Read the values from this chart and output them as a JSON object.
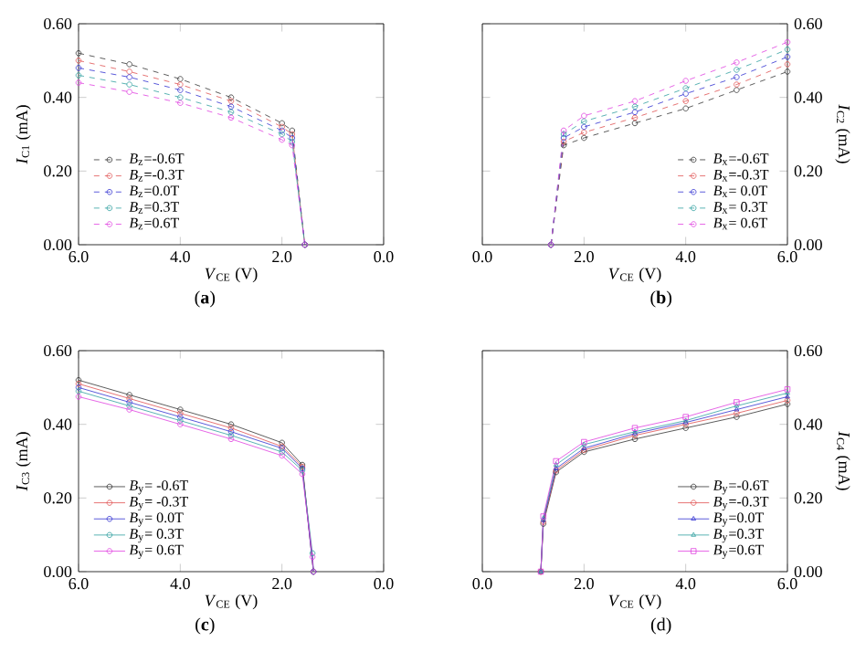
{
  "chart_data": [
    {
      "type": "line",
      "xlabel": "*V*$_{CE}$ (V)",
      "ylabel": "*I*$_{C1}$ (mA)",
      "annotations": [
        "(**a**)"
      ],
      "xlim": [
        6,
        0
      ],
      "xticks": [
        {
          "value": 6,
          "label": "6.0"
        },
        {
          "value": 4,
          "label": "4.0"
        },
        {
          "value": 2,
          "label": "2.0"
        },
        {
          "value": 0,
          "label": "0.0"
        }
      ],
      "ylim": [
        0,
        0.6
      ],
      "yticks": [
        {
          "value": 0,
          "label": "0.00"
        },
        {
          "value": 0.2,
          "label": "0.20"
        },
        {
          "value": 0.4,
          "label": "0.40"
        },
        {
          "value": 0.6,
          "label": "0.60"
        }
      ],
      "legend": "bottom left",
      "marker": "circle",
      "line_style": "dashed",
      "x": [
        6,
        5,
        4,
        3,
        2,
        1.8,
        1.55
      ],
      "series": [
        {
          "name": "*B*$_{z}$=-0.6T",
          "color": "#333333",
          "values": [
            0.52,
            0.49,
            0.45,
            0.4,
            0.33,
            0.31,
            0
          ]
        },
        {
          "name": "*B*$_{z}$=-0.3T",
          "color": "#e05050",
          "values": [
            0.5,
            0.47,
            0.435,
            0.39,
            0.32,
            0.3,
            0
          ]
        },
        {
          "name": "*B*$_{z}$=0.0T",
          "color": "#3030d0",
          "values": [
            0.48,
            0.455,
            0.42,
            0.375,
            0.31,
            0.29,
            0
          ]
        },
        {
          "name": "*B*$_{z}$=0.3T",
          "color": "#30a0a0",
          "values": [
            0.46,
            0.435,
            0.4,
            0.36,
            0.3,
            0.28,
            0
          ]
        },
        {
          "name": "*B*$_{z}$=0.6T",
          "color": "#e040e0",
          "values": [
            0.44,
            0.415,
            0.385,
            0.345,
            0.285,
            0.27,
            0
          ]
        }
      ]
    },
    {
      "type": "line",
      "xlabel": "*V*$_{CE}$ (V)",
      "y2label": "*I*$_{C2}$ (mA)",
      "annotations": [
        "(**b**)"
      ],
      "xlim": [
        0,
        6
      ],
      "xticks": [
        {
          "value": 0,
          "label": "0.0"
        },
        {
          "value": 2,
          "label": "2.0"
        },
        {
          "value": 4,
          "label": "4.0"
        },
        {
          "value": 6,
          "label": "6.0"
        }
      ],
      "y2lim": [
        0,
        0.6
      ],
      "y2ticks": [
        {
          "value": 0,
          "label": "0.00"
        },
        {
          "value": 0.2,
          "label": "0.20"
        },
        {
          "value": 0.4,
          "label": "0.40"
        },
        {
          "value": 0.6,
          "label": "0.60"
        }
      ],
      "legend": "bottom right",
      "marker": "circle",
      "line_style": "dashed",
      "x": [
        1.35,
        1.6,
        2,
        3,
        4,
        5,
        6
      ],
      "series": [
        {
          "name": "*B*$_{x}$=-0.6T",
          "color": "#333333",
          "axis": "y2",
          "values": [
            0,
            0.27,
            0.29,
            0.33,
            0.37,
            0.42,
            0.47
          ]
        },
        {
          "name": "*B*$_{x}$=-0.3T",
          "color": "#e05050",
          "axis": "y2",
          "values": [
            0,
            0.28,
            0.305,
            0.345,
            0.39,
            0.435,
            0.49
          ]
        },
        {
          "name": "*B*$_{x}$= 0.0T",
          "color": "#3030d0",
          "axis": "y2",
          "values": [
            0,
            0.29,
            0.32,
            0.36,
            0.41,
            0.455,
            0.51
          ]
        },
        {
          "name": "*B*$_{x}$= 0.3T",
          "color": "#30a0a0",
          "axis": "y2",
          "values": [
            0,
            0.3,
            0.335,
            0.375,
            0.425,
            0.475,
            0.53
          ]
        },
        {
          "name": "*B*$_{x}$= 0.6T",
          "color": "#e040e0",
          "axis": "y2",
          "values": [
            0,
            0.31,
            0.35,
            0.39,
            0.445,
            0.495,
            0.55
          ]
        }
      ]
    },
    {
      "type": "line",
      "xlabel": "*V*$_{CE}$ (V)",
      "ylabel": "*I*$_{C3}$ (mA)",
      "annotations": [
        "(**c**)"
      ],
      "xlim": [
        6,
        0
      ],
      "xticks": [
        {
          "value": 6,
          "label": "6.0"
        },
        {
          "value": 4,
          "label": "4.0"
        },
        {
          "value": 2,
          "label": "2.0"
        },
        {
          "value": 0,
          "label": "0.0"
        }
      ],
      "ylim": [
        0,
        0.6
      ],
      "yticks": [
        {
          "value": 0,
          "label": "0.00"
        },
        {
          "value": 0.2,
          "label": "0.20"
        },
        {
          "value": 0.4,
          "label": "0.40"
        },
        {
          "value": 0.6,
          "label": "0.60"
        }
      ],
      "legend": "bottom left",
      "marker": "circle",
      "line_style": "solid",
      "x": [
        6,
        5,
        4,
        3,
        2,
        1.6,
        1.4,
        1.38
      ],
      "series": [
        {
          "name": "*B*$_{y}$= -0.6T",
          "color": "#333333",
          "values": [
            0.52,
            0.48,
            0.44,
            0.4,
            0.35,
            0.29,
            null,
            0
          ]
        },
        {
          "name": "*B*$_{y}$= -0.3T",
          "color": "#e05050",
          "values": [
            0.51,
            0.47,
            0.43,
            0.39,
            0.34,
            0.285,
            null,
            0
          ]
        },
        {
          "name": "*B*$_{y}$= 0.0T",
          "color": "#3030d0",
          "values": [
            0.5,
            0.46,
            0.42,
            0.38,
            0.335,
            0.28,
            null,
            0
          ]
        },
        {
          "name": "*B*$_{y}$= 0.3T",
          "color": "#30a0a0",
          "values": [
            0.49,
            0.45,
            0.41,
            0.37,
            0.325,
            0.275,
            0.05,
            0
          ]
        },
        {
          "name": "*B*$_{y}$= 0.6T",
          "color": "#e040e0",
          "values": [
            0.475,
            0.44,
            0.4,
            0.36,
            0.315,
            0.265,
            0.04,
            0
          ]
        }
      ]
    },
    {
      "type": "line",
      "xlabel": "*V*$_{CE}$ (V)",
      "y2label": "*I*$_{C4}$ (mA)",
      "annotations": [
        "(d)"
      ],
      "xlim": [
        0,
        6
      ],
      "xticks": [
        {
          "value": 0,
          "label": "0.0"
        },
        {
          "value": 2,
          "label": "2.0"
        },
        {
          "value": 4,
          "label": "4.0"
        },
        {
          "value": 6,
          "label": "6.0"
        }
      ],
      "y2lim": [
        0,
        0.6
      ],
      "y2ticks": [
        {
          "value": 0,
          "label": "0.00"
        },
        {
          "value": 0.2,
          "label": "0.20"
        },
        {
          "value": 0.4,
          "label": "0.40"
        },
        {
          "value": 0.6,
          "label": "0.60"
        }
      ],
      "legend": "bottom right",
      "line_style": "solid",
      "x": [
        1.15,
        1.2,
        1.45,
        2,
        3,
        4,
        5,
        6
      ],
      "series": [
        {
          "name": "*B*$_{y}$=-0.6T",
          "color": "#333333",
          "axis": "y2",
          "marker": "circle",
          "values": [
            0,
            0.13,
            0.27,
            0.325,
            0.36,
            0.39,
            0.42,
            0.455
          ]
        },
        {
          "name": "*B*$_{y}$=-0.3T",
          "color": "#e05050",
          "axis": "y2",
          "marker": "circle",
          "values": [
            0,
            0.135,
            0.275,
            0.33,
            0.37,
            0.4,
            0.43,
            0.465
          ]
        },
        {
          "name": "*B*$_{y}$=0.0T",
          "color": "#3030d0",
          "axis": "y2",
          "marker": "triangle",
          "values": [
            0,
            0.14,
            0.28,
            0.335,
            0.375,
            0.405,
            0.44,
            0.475
          ]
        },
        {
          "name": "*B*$_{y}$=0.3T",
          "color": "#30a0a0",
          "axis": "y2",
          "marker": "triangle",
          "values": [
            0,
            0.145,
            0.29,
            0.345,
            0.38,
            0.41,
            0.45,
            0.485
          ]
        },
        {
          "name": "*B*$_{y}$=0.6T",
          "color": "#e040e0",
          "axis": "y2",
          "marker": "square",
          "values": [
            0,
            0.15,
            0.3,
            0.352,
            0.39,
            0.42,
            0.46,
            0.495
          ]
        }
      ]
    }
  ]
}
